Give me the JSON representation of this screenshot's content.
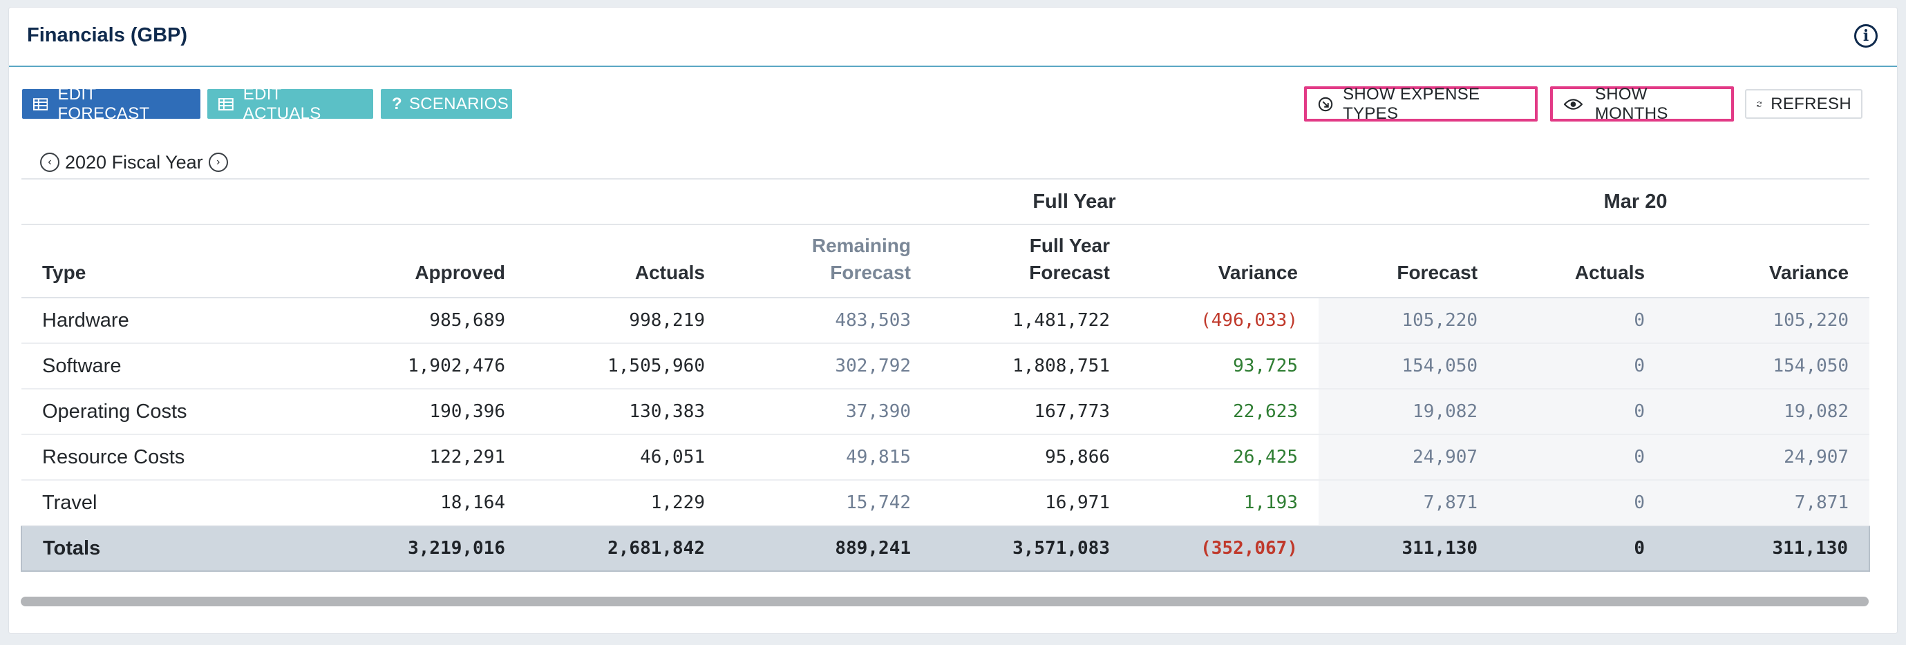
{
  "header": {
    "title": "Financials (GBP)",
    "info_icon": "info-icon"
  },
  "toolbar": {
    "edit_forecast": "EDIT FORECAST",
    "edit_actuals": "EDIT ACTUALS",
    "scenarios": "SCENARIOS",
    "show_expense_types": "SHOW EXPENSE TYPES",
    "show_months": "SHOW MONTHS",
    "refresh": "REFRESH"
  },
  "year_nav": {
    "label": "2020 Fiscal Year"
  },
  "table": {
    "groups": {
      "full_year": "Full Year",
      "month": "Mar 20"
    },
    "headers": {
      "type": "Type",
      "approved": "Approved",
      "actuals": "Actuals",
      "remaining_forecast_1": "Remaining",
      "remaining_forecast_2": "Forecast",
      "full_year_forecast_1": "Full Year",
      "full_year_forecast_2": "Forecast",
      "variance": "Variance",
      "m_forecast": "Forecast",
      "m_actuals": "Actuals",
      "m_variance": "Variance"
    },
    "rows": [
      {
        "type": "Hardware",
        "approved": "985,689",
        "actuals": "998,219",
        "remaining": "483,503",
        "full_year": "1,481,722",
        "variance": "(496,033)",
        "m_forecast": "105,220",
        "m_actuals": "0",
        "m_variance": "105,220"
      },
      {
        "type": "Software",
        "approved": "1,902,476",
        "actuals": "1,505,960",
        "remaining": "302,792",
        "full_year": "1,808,751",
        "variance": "93,725",
        "m_forecast": "154,050",
        "m_actuals": "0",
        "m_variance": "154,050"
      },
      {
        "type": "Operating Costs",
        "approved": "190,396",
        "actuals": "130,383",
        "remaining": "37,390",
        "full_year": "167,773",
        "variance": "22,623",
        "m_forecast": "19,082",
        "m_actuals": "0",
        "m_variance": "19,082"
      },
      {
        "type": "Resource Costs",
        "approved": "122,291",
        "actuals": "46,051",
        "remaining": "49,815",
        "full_year": "95,866",
        "variance": "26,425",
        "m_forecast": "24,907",
        "m_actuals": "0",
        "m_variance": "24,907"
      },
      {
        "type": "Travel",
        "approved": "18,164",
        "actuals": "1,229",
        "remaining": "15,742",
        "full_year": "16,971",
        "variance": "1,193",
        "m_forecast": "7,871",
        "m_actuals": "0",
        "m_variance": "7,871"
      }
    ],
    "totals": {
      "type": "Totals",
      "approved": "3,219,016",
      "actuals": "2,681,842",
      "remaining": "889,241",
      "full_year": "3,571,083",
      "variance": "(352,067)",
      "m_forecast": "311,130",
      "m_actuals": "0",
      "m_variance": "311,130"
    }
  },
  "colors": {
    "primary": "#2f6db8",
    "teal": "#5bc0c6",
    "highlight": "#e23a86",
    "negative": "#c0392b",
    "positive": "#2e7d32",
    "muted": "#6f7e93",
    "title": "#0f2a4d"
  }
}
